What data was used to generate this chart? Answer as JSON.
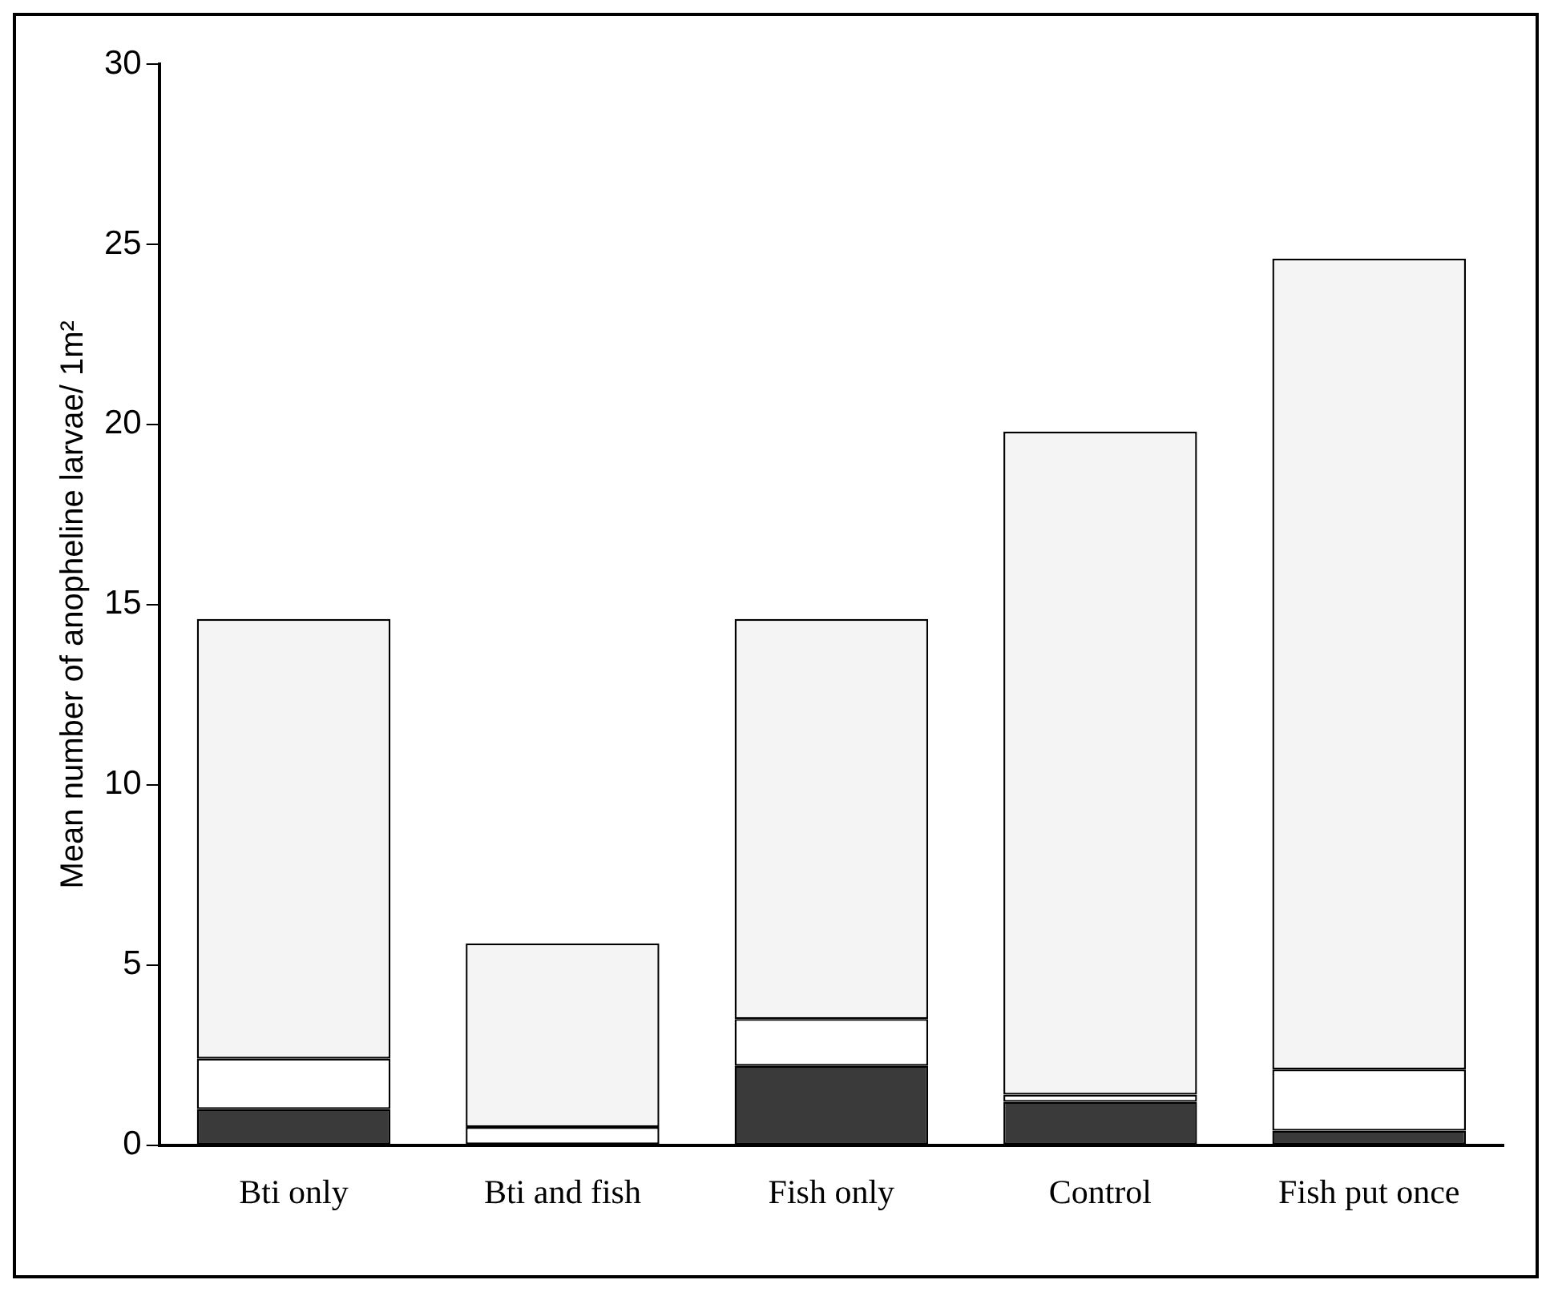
{
  "chart_data": {
    "type": "bar",
    "stacked": true,
    "ylabel": "Mean number of anopheline larvae/ 1m²",
    "categories": [
      "Bti only",
      "Bti and fish",
      "Fish only",
      "Control",
      "Fish put once"
    ],
    "series": [
      {
        "color": "#3a3a3a",
        "values": [
          1.0,
          0,
          2.2,
          1.2,
          0.4
        ]
      },
      {
        "color": "#ffffff",
        "values": [
          1.4,
          0.5,
          1.3,
          0.2,
          1.7
        ]
      },
      {
        "color": "#f4f4f4",
        "values": [
          12.2,
          5.1,
          11.1,
          18.4,
          22.5
        ]
      }
    ],
    "ylim": [
      0,
      30
    ],
    "yticks": [
      0,
      5,
      10,
      15,
      20,
      25,
      30
    ],
    "grid": false,
    "legend": false
  }
}
